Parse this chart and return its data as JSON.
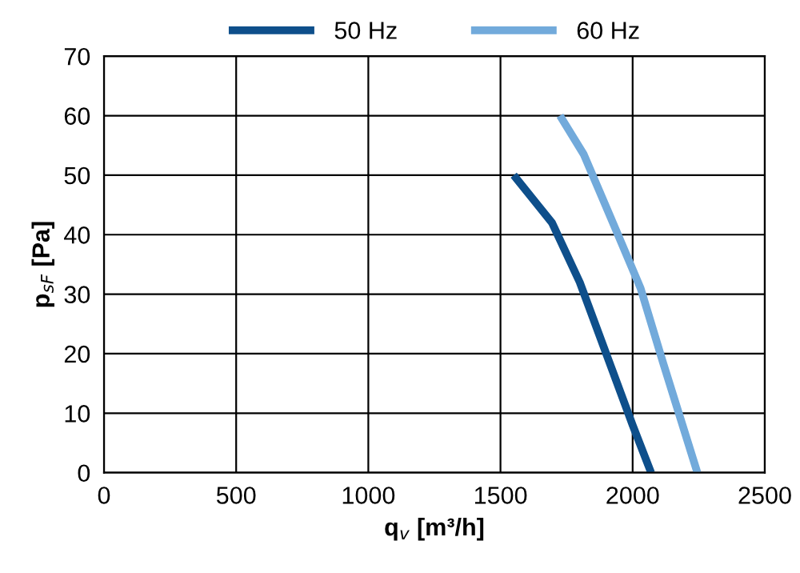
{
  "chart_data": {
    "type": "line",
    "xlabel": "q$_{v}$ [m³/h]",
    "ylabel": "p$_{sF}$ [Pa]",
    "series": [
      {
        "name": "50 Hz",
        "color": "#0e4f8b",
        "x": [
          1550,
          1695,
          1800,
          1925,
          2000,
          2070
        ],
        "values": [
          50,
          42,
          32,
          17,
          8,
          0
        ]
      },
      {
        "name": "60 Hz",
        "color": "#72aadb",
        "x": [
          1725,
          1815,
          1935,
          2030,
          2115,
          2245
        ],
        "values": [
          60,
          53.5,
          41,
          31,
          18.5,
          0
        ]
      }
    ],
    "xlim": [
      0,
      2500
    ],
    "xticks": [
      0,
      500,
      1000,
      1500,
      2000,
      2500
    ],
    "ylim": [
      0,
      70
    ],
    "yticks": [
      0,
      10,
      20,
      30,
      40,
      50,
      60,
      70
    ],
    "grid": true,
    "legend": "top",
    "marker": "none",
    "line_style": "solid"
  }
}
